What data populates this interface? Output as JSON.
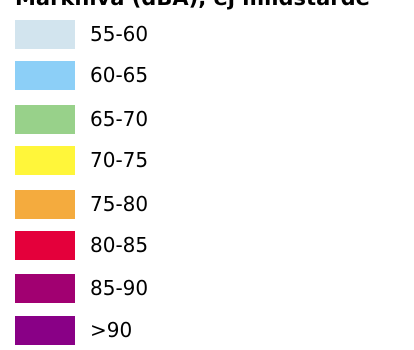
{
  "legend": {
    "title": "Markniva (dBA), ej mildstärde",
    "items": [
      {
        "label": "55-60",
        "color": "#d2e4ee"
      },
      {
        "label": "60-65",
        "color": "#8ccff7"
      },
      {
        "label": "65-70",
        "color": "#98d18a"
      },
      {
        "label": "70-75",
        "color": "#fff63a"
      },
      {
        "label": "75-80",
        "color": "#f4ab3e"
      },
      {
        "label": "80-85",
        "color": "#e4003b"
      },
      {
        "label": "85-90",
        "color": "#a10071"
      },
      {
        "label": ">90",
        "color": "#890086"
      }
    ]
  }
}
